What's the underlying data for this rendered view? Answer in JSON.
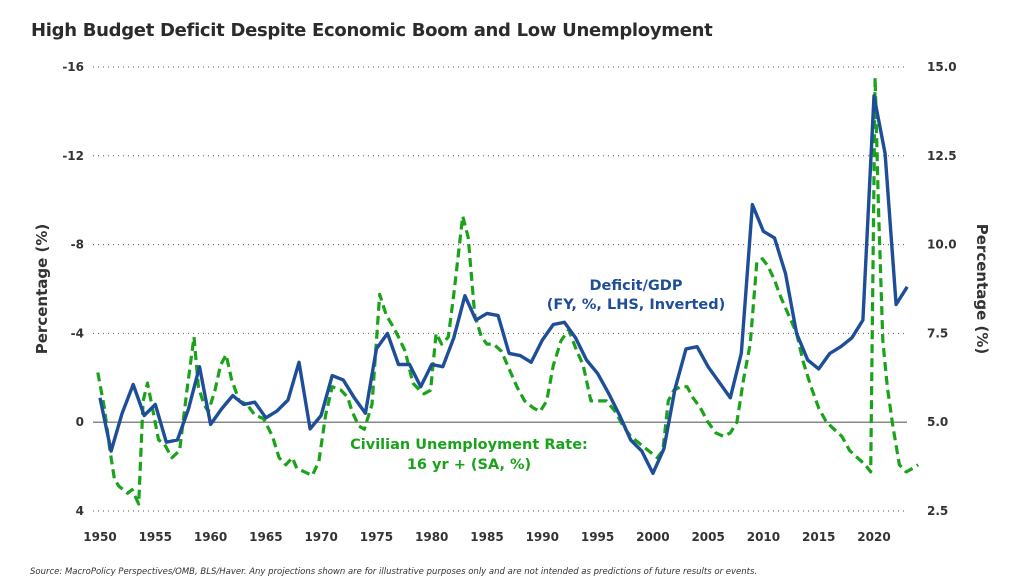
{
  "title": "High Budget Deficit Despite Economic Boom and Low Unemployment",
  "source": "Source: MacroPolicy Perspectives/OMB, BLS/Haver. Any projections shown are for illustrative purposes only and are not intended as predictions of future results or events.",
  "chart_data": {
    "type": "line",
    "title": "High Budget Deficit Despite Economic Boom and Low Unemployment",
    "xlabel": "",
    "ylabel_left": "Percentage (%)",
    "ylabel_right": "Percentage (%)",
    "x_ticks": [
      "1950",
      "1955",
      "1960",
      "1965",
      "1970",
      "1975",
      "1980",
      "1985",
      "1990",
      "1995",
      "2000",
      "2005",
      "2010",
      "2015",
      "2020"
    ],
    "xlim": [
      1949,
      2024
    ],
    "left_axis": {
      "ticks": [
        "-16",
        "-12",
        "-8",
        "-4",
        "0",
        "4"
      ],
      "values": [
        -16,
        -12,
        -8,
        -4,
        0,
        4
      ],
      "ylim": [
        -16,
        4
      ],
      "inverted": true
    },
    "right_axis": {
      "ticks": [
        "15.0",
        "12.5",
        "10.0",
        "7.5",
        "5.0",
        "2.5"
      ],
      "values": [
        15,
        12.5,
        10,
        7.5,
        5,
        2.5
      ],
      "ylim": [
        2.5,
        15
      ]
    },
    "grid": "horizontal dotted",
    "series": [
      {
        "name": "Deficit/GDP",
        "label_lines": [
          "Deficit/GDP",
          "(FY, %, LHS, Inverted)"
        ],
        "axis": "left",
        "color": "#1f4e99",
        "style": "solid",
        "x": [
          1950,
          1951,
          1952,
          1953,
          1954,
          1955,
          1956,
          1957,
          1958,
          1959,
          1960,
          1961,
          1962,
          1963,
          1964,
          1965,
          1966,
          1967,
          1968,
          1969,
          1970,
          1971,
          1972,
          1973,
          1974,
          1975,
          1976,
          1977,
          1978,
          1979,
          1980,
          1981,
          1982,
          1983,
          1984,
          1985,
          1986,
          1987,
          1988,
          1989,
          1990,
          1991,
          1992,
          1993,
          1994,
          1995,
          1996,
          1997,
          1998,
          1999,
          2000,
          2001,
          2002,
          2003,
          2004,
          2005,
          2006,
          2007,
          2008,
          2009,
          2010,
          2011,
          2012,
          2013,
          2014,
          2015,
          2016,
          2017,
          2018,
          2019,
          2020,
          2021,
          2022,
          2023
        ],
        "values": [
          -1.1,
          1.3,
          -0.4,
          -1.7,
          -0.3,
          -0.8,
          0.9,
          0.8,
          -0.6,
          -2.5,
          0.1,
          -0.6,
          -1.2,
          -0.8,
          -0.9,
          -0.2,
          -0.5,
          -1.0,
          -2.7,
          0.3,
          -0.3,
          -2.1,
          -1.9,
          -1.1,
          -0.4,
          -3.3,
          -4.0,
          -2.6,
          -2.6,
          -1.6,
          -2.6,
          -2.5,
          -3.8,
          -5.7,
          -4.6,
          -4.9,
          -4.8,
          -3.1,
          -3.0,
          -2.7,
          -3.7,
          -4.4,
          -4.5,
          -3.8,
          -2.8,
          -2.2,
          -1.3,
          -0.3,
          0.8,
          1.3,
          2.3,
          1.2,
          -1.5,
          -3.3,
          -3.4,
          -2.5,
          -1.8,
          -1.1,
          -3.1,
          -9.8,
          -8.6,
          -8.3,
          -6.7,
          -4.0,
          -2.8,
          -2.4,
          -3.1,
          -3.4,
          -3.8,
          -4.6,
          -14.7,
          -12.1,
          -5.3,
          -6.1
        ]
      },
      {
        "name": "Civilian Unemployment Rate: 16 yr + (SA, %)",
        "label_lines": [
          "Civilian Unemployment Rate:",
          "16 yr + (SA, %)"
        ],
        "axis": "right",
        "color": "#1aa31a",
        "style": "dashed",
        "x": [
          1949.8,
          1950.4,
          1950.9,
          1951.3,
          1951.7,
          1952.1,
          1952.5,
          1952.9,
          1953.5,
          1953.9,
          1954.3,
          1954.8,
          1955.3,
          1955.8,
          1956.5,
          1957.2,
          1957.9,
          1958.5,
          1958.9,
          1959.4,
          1959.8,
          1960.4,
          1960.9,
          1961.4,
          1961.9,
          1962.6,
          1963.3,
          1964.0,
          1964.8,
          1965.6,
          1966.2,
          1966.8,
          1967.4,
          1967.8,
          1968.5,
          1969.2,
          1969.8,
          1970.4,
          1971.0,
          1971.8,
          1972.4,
          1972.8,
          1973.4,
          1973.9,
          1974.6,
          1975.3,
          1975.9,
          1976.5,
          1977.0,
          1977.6,
          1978.3,
          1978.9,
          1979.3,
          1979.9,
          1980.4,
          1980.9,
          1981.5,
          1982.0,
          1982.8,
          1983.3,
          1983.9,
          1984.5,
          1985.0,
          1985.6,
          1986.3,
          1987.0,
          1987.7,
          1988.4,
          1989.2,
          1989.8,
          1990.4,
          1991.0,
          1991.7,
          1992.4,
          1993.0,
          1993.7,
          1994.4,
          1995.1,
          1995.8,
          1996.6,
          1997.3,
          1998.0,
          1998.8,
          1999.6,
          2000.4,
          2000.9,
          2001.4,
          2001.9,
          2002.5,
          2003.1,
          2003.6,
          2004.3,
          2005.0,
          2005.7,
          2006.4,
          2007.0,
          2007.6,
          2008.2,
          2008.8,
          2009.4,
          2009.9,
          2010.4,
          2011.0,
          2011.6,
          2012.3,
          2013.0,
          2013.6,
          2014.3,
          2015.0,
          2015.7,
          2016.4,
          2017.1,
          2017.8,
          2018.5,
          2019.2,
          2019.7,
          2020.1,
          2020.4,
          2020.8,
          2021.2,
          2021.7,
          2022.3,
          2022.9,
          2023.5,
          2024.0
        ],
        "values": [
          6.4,
          5.4,
          4.2,
          3.4,
          3.2,
          3.1,
          3.0,
          3.1,
          2.7,
          5.6,
          6.1,
          5.3,
          4.5,
          4.4,
          4.0,
          4.2,
          6.0,
          7.4,
          6.0,
          5.5,
          5.3,
          5.9,
          6.6,
          6.9,
          6.2,
          5.6,
          5.5,
          5.2,
          5.1,
          4.6,
          4.0,
          3.8,
          4.0,
          3.7,
          3.6,
          3.5,
          3.9,
          5.2,
          6.0,
          5.9,
          5.7,
          5.3,
          4.9,
          4.8,
          5.5,
          8.6,
          8.0,
          7.7,
          7.4,
          7.0,
          6.1,
          5.9,
          5.8,
          5.9,
          7.5,
          7.2,
          7.4,
          8.6,
          10.8,
          10.2,
          8.0,
          7.4,
          7.2,
          7.2,
          7.0,
          6.5,
          6.0,
          5.6,
          5.4,
          5.3,
          5.6,
          6.6,
          7.3,
          7.6,
          7.1,
          6.6,
          5.6,
          5.6,
          5.6,
          5.3,
          4.9,
          4.6,
          4.4,
          4.2,
          4.0,
          4.2,
          5.6,
          5.9,
          6.0,
          6.0,
          5.7,
          5.4,
          5.0,
          4.7,
          4.6,
          4.7,
          5.0,
          6.2,
          7.2,
          9.5,
          9.6,
          9.4,
          9.0,
          8.5,
          8.0,
          7.5,
          6.7,
          6.0,
          5.4,
          5.0,
          4.8,
          4.6,
          4.2,
          4.0,
          3.8,
          3.6,
          14.7,
          11.1,
          7.3,
          6.0,
          4.9,
          3.8,
          3.6,
          3.7,
          3.8
        ]
      }
    ]
  }
}
